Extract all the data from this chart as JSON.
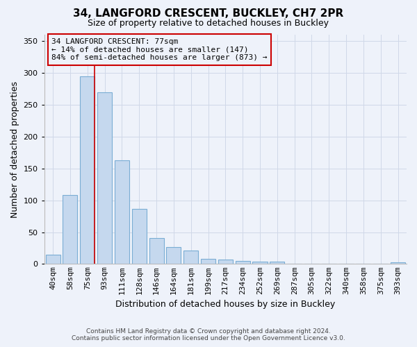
{
  "title": "34, LANGFORD CRESCENT, BUCKLEY, CH7 2PR",
  "subtitle": "Size of property relative to detached houses in Buckley",
  "xlabel": "Distribution of detached houses by size in Buckley",
  "ylabel": "Number of detached properties",
  "footer_line1": "Contains HM Land Registry data © Crown copyright and database right 2024.",
  "footer_line2": "Contains public sector information licensed under the Open Government Licence v3.0.",
  "categories": [
    "40sqm",
    "58sqm",
    "75sqm",
    "93sqm",
    "111sqm",
    "128sqm",
    "146sqm",
    "164sqm",
    "181sqm",
    "199sqm",
    "217sqm",
    "234sqm",
    "252sqm",
    "269sqm",
    "287sqm",
    "305sqm",
    "322sqm",
    "340sqm",
    "358sqm",
    "375sqm",
    "393sqm"
  ],
  "values": [
    15,
    108,
    295,
    270,
    163,
    86,
    41,
    27,
    21,
    8,
    7,
    5,
    4,
    4,
    0,
    0,
    0,
    0,
    0,
    0,
    3
  ],
  "bar_color": "#c5d8ee",
  "bar_edge_color": "#7aadd4",
  "ylim": [
    0,
    360
  ],
  "yticks": [
    0,
    50,
    100,
    150,
    200,
    250,
    300,
    350
  ],
  "annotation_text_line1": "34 LANGFORD CRESCENT: 77sqm",
  "annotation_text_line2": "← 14% of detached houses are smaller (147)",
  "annotation_text_line3": "84% of semi-detached houses are larger (873) →",
  "red_line_bar_index": 2,
  "grid_color": "#d0d8e8",
  "background_color": "#eef2fa",
  "red_line_color": "#cc0000",
  "title_fontsize": 11,
  "subtitle_fontsize": 9,
  "annotation_fontsize": 8,
  "xlabel_fontsize": 9,
  "ylabel_fontsize": 9,
  "tick_fontsize": 8
}
